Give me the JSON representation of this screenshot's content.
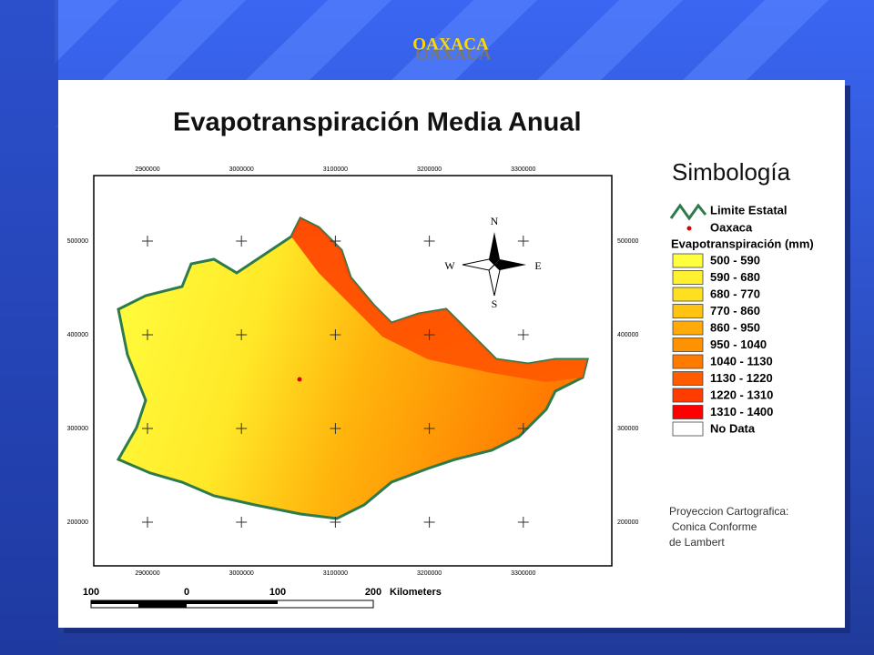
{
  "header": {
    "title": "OAXACA"
  },
  "map": {
    "title": "Evapotranspiración Media Anual",
    "x_labels": [
      2900000,
      3000000,
      3100000,
      3200000,
      3300000
    ],
    "y_labels": [
      500000,
      400000,
      300000,
      200000
    ],
    "compass": {
      "n": "N",
      "e": "E",
      "s": "S",
      "w": "W"
    },
    "scale": {
      "labels": [
        100,
        0,
        100,
        200
      ],
      "unit": "Kilometers"
    }
  },
  "legend": {
    "title": "Simbología",
    "boundary": "Limite Estatal",
    "capital": "Oaxaca",
    "classes_title": "Evapotranspiración (mm)",
    "classes": [
      {
        "label": "500 - 590",
        "color": "#ffff40"
      },
      {
        "label": "590 - 680",
        "color": "#fff030"
      },
      {
        "label": "680 - 770",
        "color": "#ffe020"
      },
      {
        "label": "770 - 860",
        "color": "#ffc412"
      },
      {
        "label": "860 - 950",
        "color": "#ffaa08"
      },
      {
        "label": "950 - 1040",
        "color": "#ff9200"
      },
      {
        "label": "1040 - 1130",
        "color": "#ff7a00"
      },
      {
        "label": "1130 - 1220",
        "color": "#ff5c00"
      },
      {
        "label": "1220 - 1310",
        "color": "#ff3c00"
      },
      {
        "label": "1310 - 1400",
        "color": "#ff0000"
      }
    ],
    "no_data": "No Data"
  },
  "projection": [
    "Proyeccion Cartografica:",
    "Conica Conforme",
    "de Lambert"
  ]
}
